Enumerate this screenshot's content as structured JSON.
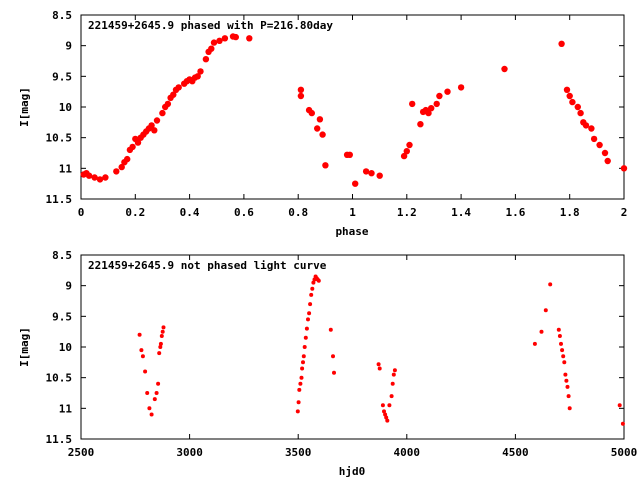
{
  "chart_data": [
    {
      "type": "scatter",
      "title": "221459+2645.9 phased with P=216.80day",
      "xlabel": "phase",
      "ylabel": "I[mag]",
      "xlim": [
        0,
        2
      ],
      "ylim": [
        11.5,
        8.5
      ],
      "y_inverted": true,
      "x_ticks": [
        "0",
        "0.2",
        "0.4",
        "0.6",
        "0.8",
        "1",
        "1.2",
        "1.4",
        "1.6",
        "1.8",
        "2"
      ],
      "y_ticks": [
        "8.5",
        "9",
        "9.5",
        "10",
        "10.5",
        "11",
        "11.5"
      ],
      "marker_color": "#ff0000",
      "grid": false,
      "x": [
        0.01,
        0.02,
        0.03,
        0.05,
        0.07,
        0.09,
        0.13,
        0.15,
        0.16,
        0.17,
        0.18,
        0.19,
        0.2,
        0.21,
        0.22,
        0.23,
        0.24,
        0.25,
        0.26,
        0.27,
        0.28,
        0.3,
        0.31,
        0.32,
        0.33,
        0.34,
        0.35,
        0.36,
        0.38,
        0.39,
        0.4,
        0.41,
        0.42,
        0.43,
        0.44,
        0.46,
        0.47,
        0.48,
        0.49,
        0.51,
        0.53,
        0.56,
        0.57,
        0.62,
        0.81,
        0.81,
        0.84,
        0.85,
        0.87,
        0.88,
        0.89,
        0.9,
        0.98,
        0.99,
        1.01,
        1.05,
        1.07,
        1.1,
        1.19,
        1.2,
        1.21,
        1.22,
        1.25,
        1.26,
        1.27,
        1.28,
        1.29,
        1.31,
        1.32,
        1.35,
        1.4,
        1.56,
        1.77,
        1.79,
        1.8,
        1.81,
        1.83,
        1.84,
        1.85,
        1.86,
        1.88,
        1.89,
        1.91,
        1.93,
        1.94,
        2.0
      ],
      "y": [
        11.1,
        11.08,
        11.12,
        11.15,
        11.18,
        11.15,
        11.05,
        10.98,
        10.9,
        10.85,
        10.7,
        10.65,
        10.52,
        10.58,
        10.5,
        10.45,
        10.4,
        10.35,
        10.3,
        10.38,
        10.22,
        10.1,
        10.0,
        9.95,
        9.85,
        9.8,
        9.72,
        9.68,
        9.62,
        9.58,
        9.55,
        9.58,
        9.52,
        9.5,
        9.42,
        9.22,
        9.1,
        9.05,
        8.95,
        8.92,
        8.88,
        8.85,
        8.86,
        8.88,
        9.72,
        9.82,
        10.05,
        10.1,
        10.35,
        10.2,
        10.45,
        10.95,
        10.78,
        10.78,
        11.25,
        11.05,
        11.08,
        11.12,
        10.8,
        10.72,
        10.62,
        9.95,
        10.28,
        10.08,
        10.05,
        10.1,
        10.02,
        9.95,
        9.82,
        9.75,
        9.68,
        9.38,
        8.97,
        9.72,
        9.82,
        9.92,
        10.0,
        10.1,
        10.25,
        10.3,
        10.35,
        10.52,
        10.62,
        10.75,
        10.88,
        11.0
      ]
    },
    {
      "type": "scatter",
      "title": "221459+2645.9 not phased light curve",
      "xlabel": "hjd0",
      "ylabel": "I[mag]",
      "xlim": [
        2500,
        5000
      ],
      "ylim": [
        11.5,
        8.5
      ],
      "y_inverted": true,
      "x_ticks": [
        "2500",
        "3000",
        "3500",
        "4000",
        "4500",
        "5000"
      ],
      "y_ticks": [
        "8.5",
        "9",
        "9.5",
        "10",
        "10.5",
        "11",
        "11.5"
      ],
      "marker_color": "#ff0000",
      "grid": false,
      "x": [
        2770,
        2778,
        2785,
        2795,
        2805,
        2815,
        2825,
        2840,
        2848,
        2855,
        2860,
        2865,
        2868,
        2872,
        2876,
        2880,
        3498,
        3502,
        3505,
        3510,
        3515,
        3518,
        3522,
        3526,
        3530,
        3535,
        3540,
        3545,
        3550,
        3555,
        3560,
        3565,
        3570,
        3575,
        3580,
        3585,
        3590,
        3595,
        3650,
        3660,
        3665,
        3870,
        3875,
        3890,
        3895,
        3900,
        3905,
        3910,
        3920,
        3930,
        3935,
        3940,
        3945,
        4590,
        4620,
        4640,
        4660,
        4700,
        4705,
        4710,
        4715,
        4720,
        4725,
        4730,
        4735,
        4740,
        4745,
        4750,
        4980,
        4995
      ],
      "y": [
        9.8,
        10.05,
        10.15,
        10.4,
        10.75,
        11.0,
        11.1,
        10.85,
        10.75,
        10.6,
        10.1,
        10.0,
        9.95,
        9.82,
        9.75,
        9.68,
        11.05,
        10.9,
        10.7,
        10.6,
        10.5,
        10.35,
        10.25,
        10.15,
        10.0,
        9.85,
        9.7,
        9.55,
        9.45,
        9.3,
        9.15,
        9.05,
        8.95,
        8.9,
        8.85,
        8.88,
        8.9,
        8.92,
        9.72,
        10.15,
        10.42,
        10.28,
        10.35,
        10.95,
        11.05,
        11.1,
        11.15,
        11.2,
        10.95,
        10.8,
        10.6,
        10.45,
        10.38,
        9.95,
        9.75,
        9.4,
        8.98,
        9.72,
        9.82,
        9.95,
        10.05,
        10.15,
        10.25,
        10.45,
        10.55,
        10.65,
        10.8,
        11.0,
        10.95,
        11.25
      ]
    }
  ]
}
